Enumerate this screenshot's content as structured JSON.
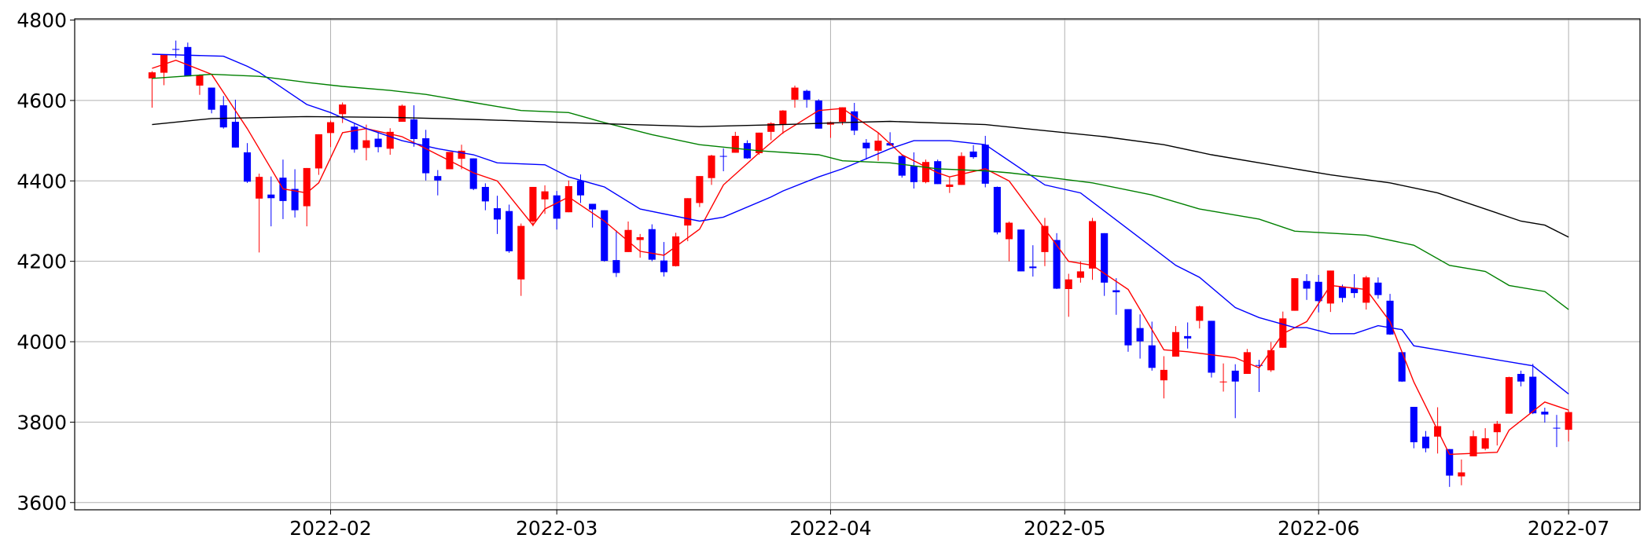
{
  "chart_data": {
    "type": "candlestick",
    "categories": [
      null,
      null,
      null,
      null,
      null,
      null,
      null,
      null,
      null,
      null,
      null,
      null,
      null,
      null,
      null,
      null,
      null,
      null,
      null,
      null,
      null,
      null,
      null,
      null,
      null,
      null,
      null,
      null,
      null,
      null,
      null,
      null,
      null,
      null,
      null,
      null,
      null,
      null,
      null,
      null,
      null,
      null,
      null,
      null,
      null,
      null,
      null,
      null,
      null,
      null,
      null,
      null,
      null,
      null,
      null,
      null,
      null,
      null,
      null,
      null,
      null,
      null,
      null,
      null,
      null,
      null,
      null,
      null,
      null,
      null,
      null,
      null,
      null,
      null,
      null,
      null,
      null,
      null,
      null,
      null,
      null,
      null,
      null,
      null,
      null,
      null,
      null,
      null,
      null,
      null,
      null,
      null,
      null,
      null,
      null,
      null,
      null,
      null,
      null,
      null,
      null,
      null,
      null,
      null,
      null,
      null,
      null,
      null,
      null,
      null,
      null,
      null,
      null,
      null,
      null,
      null,
      null,
      null,
      null,
      null
    ],
    "open": [
      4655,
      4669,
      4728,
      4733,
      4637,
      4632,
      4588,
      4547,
      4471,
      4356,
      4366,
      4408,
      4380,
      4337,
      4431,
      4519,
      4566,
      4535,
      4482,
      4505,
      4480,
      4547,
      4553,
      4506,
      4412,
      4429,
      4455,
      4456,
      4385,
      4332,
      4325,
      4155,
      4299,
      4354,
      4364,
      4322,
      4401,
      4343,
      4327,
      4203,
      4223,
      4253,
      4280,
      4202,
      4188,
      4289,
      4345,
      4407,
      4462,
      4470,
      4494,
      4469,
      4522,
      4541,
      4602,
      4624,
      4600,
      4540,
      4547,
      4573,
      4495,
      4475,
      4494,
      4462,
      4437,
      4397,
      4449,
      4385,
      4390,
      4473,
      4490,
      4385,
      4255,
      4279,
      4187,
      4223,
      4253,
      4131,
      4159,
      4182,
      4270,
      4128,
      4081,
      4034,
      3991,
      3904,
      3963,
      4014,
      4052,
      4052,
      3899,
      3928,
      3920,
      3942,
      3929,
      3985,
      4077,
      4151,
      4149,
      4095,
      4137,
      4134,
      4097,
      4147,
      4102,
      3974,
      3838,
      3764,
      3764,
      3733,
      3665,
      3715,
      3734,
      3775,
      3821,
      3920,
      3913,
      3826,
      3786,
      3781
    ],
    "high": [
      4673,
      4714,
      4749,
      4744,
      4665,
      4632,
      4611,
      4602,
      4494,
      4418,
      4411,
      4453,
      4429,
      4432,
      4516,
      4550,
      4595,
      4542,
      4540,
      4521,
      4531,
      4590,
      4588,
      4527,
      4427,
      4472,
      4490,
      4456,
      4394,
      4363,
      4341,
      4294,
      4385,
      4389,
      4375,
      4401,
      4416,
      4343,
      4327,
      4277,
      4299,
      4268,
      4292,
      4248,
      4271,
      4357,
      4412,
      4465,
      4481,
      4522,
      4501,
      4520,
      4546,
      4576,
      4637,
      4627,
      4603,
      4548,
      4583,
      4594,
      4504,
      4521,
      4521,
      4464,
      4471,
      4453,
      4453,
      4410,
      4471,
      4489,
      4512,
      4386,
      4299,
      4279,
      4240,
      4308,
      4270,
      4169,
      4200,
      4308,
      4270,
      4158,
      4081,
      4068,
      4050,
      3964,
      4039,
      4048,
      4090,
      4052,
      3946,
      3944,
      3982,
      3955,
      3999,
      4075,
      4158,
      4168,
      4166,
      4177,
      4142,
      4168,
      4164,
      4160,
      4119,
      3974,
      3838,
      3778,
      3837,
      3733,
      3707,
      3779,
      3785,
      3803,
      3913,
      3928,
      3945,
      3836,
      3818,
      3829
    ],
    "low": [
      4582,
      4638,
      4706,
      4662,
      4614,
      4568,
      4530,
      4483,
      4395,
      4222,
      4287,
      4305,
      4309,
      4287,
      4415,
      4484,
      4544,
      4470,
      4451,
      4471,
      4465,
      4547,
      4485,
      4401,
      4364,
      4429,
      4429,
      4377,
      4327,
      4268,
      4221,
      4114,
      4287,
      4318,
      4279,
      4322,
      4345,
      4284,
      4199,
      4161,
      4223,
      4209,
      4200,
      4162,
      4187,
      4250,
      4335,
      4390,
      4424,
      4470,
      4455,
      4465,
      4501,
      4517,
      4582,
      4582,
      4530,
      4507,
      4539,
      4514,
      4453,
      4450,
      4487,
      4408,
      4381,
      4394,
      4392,
      4370,
      4390,
      4455,
      4384,
      4267,
      4200,
      4175,
      4162,
      4188,
      4131,
      4062,
      4147,
      4154,
      4114,
      4067,
      3975,
      3958,
      3928,
      3859,
      3963,
      3983,
      4033,
      3911,
      3876,
      3810,
      3920,
      3875,
      3925,
      3985,
      4077,
      4104,
      4073,
      4074,
      4098,
      4109,
      4080,
      4107,
      4017,
      3900,
      3735,
      3725,
      3722,
      3639,
      3643,
      3715,
      3730,
      3742,
      3821,
      3889,
      3820,
      3799,
      3738,
      3752
    ],
    "close": [
      4670,
      4713,
      4726,
      4660,
      4663,
      4577,
      4533,
      4483,
      4398,
      4410,
      4357,
      4350,
      4327,
      4432,
      4516,
      4546,
      4590,
      4478,
      4501,
      4484,
      4522,
      4587,
      4504,
      4419,
      4401,
      4472,
      4475,
      4380,
      4349,
      4304,
      4225,
      4288,
      4385,
      4374,
      4306,
      4387,
      4364,
      4329,
      4201,
      4171,
      4278,
      4260,
      4204,
      4173,
      4262,
      4357,
      4412,
      4463,
      4461,
      4512,
      4456,
      4520,
      4543,
      4575,
      4632,
      4602,
      4530,
      4546,
      4583,
      4525,
      4481,
      4500,
      4488,
      4413,
      4397,
      4447,
      4392,
      4391,
      4462,
      4459,
      4393,
      4272,
      4296,
      4175,
      4183,
      4288,
      4132,
      4155,
      4175,
      4300,
      4147,
      4123,
      3991,
      4001,
      3935,
      3930,
      4024,
      4008,
      4088,
      3923,
      3901,
      3901,
      3974,
      3941,
      3979,
      4058,
      4158,
      4132,
      4101,
      4177,
      4109,
      4121,
      4160,
      4116,
      4018,
      3901,
      3750,
      3735,
      3790,
      3667,
      3675,
      3765,
      3760,
      3796,
      3912,
      3901,
      3822,
      3819,
      3785,
      3825
    ],
    "up_color": "#ff0000",
    "down_color": "#0000ff",
    "series": [
      {
        "color": "#ff0000",
        "x": [
          0,
          2,
          5,
          8,
          9,
          11,
          13,
          14,
          16,
          18,
          21,
          23,
          27,
          29,
          32,
          33,
          35,
          38,
          41,
          43,
          46,
          48,
          51,
          53,
          56,
          58,
          61,
          63,
          66,
          67,
          70,
          72,
          75,
          77,
          79,
          82,
          85,
          87,
          91,
          93,
          95,
          97,
          99,
          102,
          104,
          106,
          109,
          113,
          114,
          117,
          119
        ],
        "values": [
          4680,
          4700,
          4665,
          4530,
          4480,
          4380,
          4370,
          4395,
          4520,
          4530,
          4510,
          4480,
          4420,
          4400,
          4290,
          4330,
          4360,
          4300,
          4225,
          4215,
          4280,
          4390,
          4470,
          4520,
          4575,
          4580,
          4520,
          4465,
          4420,
          4410,
          4430,
          4400,
          4280,
          4200,
          4190,
          4130,
          3980,
          3975,
          3960,
          3935,
          4020,
          4050,
          4140,
          4130,
          4050,
          3900,
          3720,
          3725,
          3780,
          3850,
          3830
        ]
      },
      {
        "color": "#0000ff",
        "x": [
          0,
          6,
          8,
          9,
          13,
          15,
          18,
          21,
          24,
          27,
          29,
          33,
          35,
          38,
          41,
          46,
          48,
          52,
          53,
          56,
          58,
          62,
          64,
          67,
          70,
          75,
          78,
          82,
          86,
          88,
          91,
          93,
          96,
          97,
          99,
          101,
          103,
          105,
          106,
          109,
          113,
          116,
          119
        ],
        "values": [
          4715,
          4710,
          4685,
          4670,
          4590,
          4570,
          4530,
          4500,
          4480,
          4465,
          4445,
          4440,
          4410,
          4385,
          4330,
          4300,
          4310,
          4360,
          4375,
          4410,
          4430,
          4480,
          4500,
          4500,
          4490,
          4390,
          4370,
          4280,
          4190,
          4160,
          4085,
          4060,
          4035,
          4035,
          4020,
          4020,
          4040,
          4030,
          3990,
          3975,
          3955,
          3940,
          3870
        ]
      },
      {
        "color": "#008000",
        "x": [
          0,
          5,
          9,
          13,
          16,
          20,
          23,
          27,
          31,
          35,
          38,
          42,
          46,
          51,
          56,
          58,
          62,
          66,
          70,
          72,
          75,
          79,
          84,
          88,
          93,
          96,
          99,
          102,
          106,
          109,
          112,
          114,
          117,
          119
        ],
        "values": [
          4655,
          4665,
          4660,
          4645,
          4635,
          4625,
          4615,
          4595,
          4575,
          4570,
          4545,
          4515,
          4490,
          4475,
          4465,
          4450,
          4445,
          4430,
          4425,
          4420,
          4410,
          4395,
          4365,
          4330,
          4305,
          4275,
          4270,
          4265,
          4240,
          4190,
          4175,
          4140,
          4125,
          4080
        ]
      },
      {
        "color": "#000000",
        "x": [
          0,
          5,
          13,
          20,
          27,
          35,
          46,
          53,
          58,
          62,
          70,
          75,
          80,
          85,
          89,
          94,
          99,
          104,
          108,
          112,
          115,
          117,
          119
        ],
        "values": [
          4540,
          4555,
          4560,
          4558,
          4553,
          4545,
          4535,
          4540,
          4545,
          4548,
          4540,
          4525,
          4510,
          4490,
          4465,
          4440,
          4415,
          4395,
          4370,
          4330,
          4300,
          4290,
          4260
        ]
      }
    ],
    "xlim": [
      -6.5,
      125
    ],
    "xticks": [
      {
        "value": 15,
        "label": "2022-02"
      },
      {
        "value": 34,
        "label": "2022-03"
      },
      {
        "value": 57,
        "label": "2022-04"
      },
      {
        "value": 76.67,
        "label": "2022-05"
      },
      {
        "value": 98,
        "label": "2022-06"
      },
      {
        "value": 119,
        "label": "2022-07"
      }
    ],
    "ylim": [
      3582,
      4803
    ],
    "yticks": [
      3600,
      3800,
      4000,
      4200,
      4400,
      4600,
      4800
    ],
    "grid": true
  }
}
